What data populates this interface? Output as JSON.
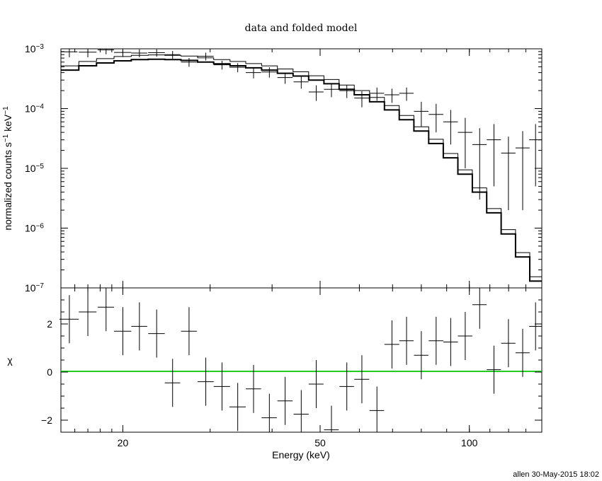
{
  "chart_data": [
    {
      "type": "line",
      "title": "data and folded model",
      "ylabel": "normalized counts s^-1 keV^-1",
      "xscale": "log",
      "yscale": "log",
      "xlim": [
        15,
        140
      ],
      "ylim": [
        1e-07,
        0.001
      ],
      "yticks": [
        {
          "label": "10",
          "exp": "−3",
          "value": 0.001
        },
        {
          "label": "10",
          "exp": "−4",
          "value": 0.0001
        },
        {
          "label": "10",
          "exp": "−5",
          "value": 1e-05
        },
        {
          "label": "10",
          "exp": "−6",
          "value": 1e-06
        },
        {
          "label": "10",
          "exp": "−7",
          "value": 1e-07
        }
      ],
      "model_color": "#000000",
      "data_color": "#000000",
      "series": [
        {
          "role": "model",
          "bins": [
            [
              15.0,
              16.3,
              0.00044
            ],
            [
              16.3,
              17.7,
              0.00052
            ],
            [
              17.7,
              19.2,
              0.00058
            ],
            [
              19.2,
              20.8,
              0.00063
            ],
            [
              20.8,
              22.5,
              0.00066
            ],
            [
              22.5,
              24.3,
              0.00067
            ],
            [
              24.3,
              26.2,
              0.00066
            ],
            [
              26.2,
              28.3,
              0.00064
            ],
            [
              28.3,
              30.5,
              0.0006
            ],
            [
              30.5,
              32.9,
              0.00056
            ],
            [
              32.9,
              35.4,
              0.00052
            ],
            [
              35.4,
              38.1,
              0.00048
            ],
            [
              38.1,
              41.0,
              0.00044
            ],
            [
              41.0,
              44.1,
              0.00039
            ],
            [
              44.1,
              47.4,
              0.00035
            ],
            [
              47.4,
              50.9,
              0.0003
            ],
            [
              50.9,
              54.6,
              0.00026
            ],
            [
              54.6,
              58.6,
              0.00021
            ],
            [
              58.6,
              62.9,
              0.00017
            ],
            [
              62.9,
              67.4,
              0.00013
            ],
            [
              67.4,
              72.2,
              9.5e-05
            ],
            [
              72.2,
              77.3,
              6.5e-05
            ],
            [
              77.3,
              82.8,
              4.2e-05
            ],
            [
              82.8,
              88.6,
              2.6e-05
            ],
            [
              88.6,
              94.8,
              1.5e-05
            ],
            [
              94.8,
              101.4,
              8e-06
            ],
            [
              101.4,
              108.4,
              4e-06
            ],
            [
              108.4,
              115.9,
              1.8e-06
            ],
            [
              115.9,
              123.9,
              8e-07
            ],
            [
              123.9,
              132.4,
              3.3e-07
            ],
            [
              132.4,
              140.0,
              1.3e-07
            ]
          ]
        },
        {
          "role": "data",
          "points": [
            [
              15.6,
              0.6,
              0.00089,
              0.00017
            ],
            [
              17.0,
              0.7,
              0.00088,
              0.00016
            ],
            [
              18.5,
              0.7,
              0.00096,
              0.00015
            ],
            [
              20.0,
              0.8,
              0.00087,
              0.00014
            ],
            [
              21.6,
              0.8,
              0.00085,
              0.00013
            ],
            [
              23.4,
              0.9,
              0.00086,
              0.00012
            ],
            [
              25.2,
              0.9,
              0.0008,
              0.00012
            ],
            [
              27.2,
              1.0,
              0.0006,
              0.0001
            ],
            [
              29.4,
              1.1,
              0.00075,
              0.00011
            ],
            [
              31.7,
              1.2,
              0.00054,
              9e-05
            ],
            [
              34.1,
              1.3,
              0.00049,
              8.5e-05
            ],
            [
              36.7,
              1.3,
              0.0004,
              8e-05
            ],
            [
              39.5,
              1.4,
              0.00041,
              8e-05
            ],
            [
              42.5,
              1.5,
              0.00033,
              7e-05
            ],
            [
              45.8,
              1.6,
              0.00028,
              6.5e-05
            ],
            [
              49.1,
              1.7,
              0.00019,
              5.5e-05
            ],
            [
              52.7,
              1.8,
              0.00021,
              5.5e-05
            ],
            [
              56.6,
              1.9,
              0.0002,
              5e-05
            ],
            [
              60.7,
              2.1,
              0.00015,
              4.5e-05
            ],
            [
              65.1,
              2.2,
              0.00018,
              4.5e-05
            ],
            [
              69.8,
              2.4,
              0.00017,
              4.5e-05
            ],
            [
              74.7,
              2.5,
              0.00018,
              4.5e-05
            ],
            [
              80.0,
              2.7,
              9e-05,
              4e-05
            ],
            [
              85.7,
              2.9,
              8e-05,
              4e-05
            ],
            [
              91.7,
              3.1,
              6e-05,
              3.5e-05
            ],
            [
              98.1,
              3.3,
              4e-05,
              3e-05
            ],
            [
              104.9,
              3.5,
              2.5e-05,
              2.2e-05
            ],
            [
              112.1,
              3.7,
              3e-05,
              2.5e-05
            ],
            [
              119.9,
              4.0,
              1.8e-05,
              1.6e-05
            ],
            [
              128.1,
              4.2,
              2.2e-05,
              2e-05
            ],
            [
              136.0,
              4.0,
              3e-05,
              2.5e-05
            ]
          ]
        }
      ]
    },
    {
      "type": "scatter",
      "xlabel": "Energy (keV)",
      "ylabel": "χ",
      "xscale": "log",
      "xlim": [
        15,
        140
      ],
      "ylim": [
        -2.5,
        3.5
      ],
      "xticks": [
        {
          "label": "20",
          "value": 20
        },
        {
          "label": "50",
          "value": 50
        },
        {
          "label": "100",
          "value": 100
        }
      ],
      "yticks": [
        {
          "label": "2",
          "value": 2
        },
        {
          "label": "0",
          "value": 0
        },
        {
          "label": "−2",
          "value": -2
        }
      ],
      "reference_line": {
        "y": 0,
        "color": "#22cc22"
      },
      "series": [
        {
          "role": "residuals",
          "points": [
            [
              15.6,
              0.7,
              2.2,
              1.0
            ],
            [
              17.0,
              0.7,
              2.5,
              1.0
            ],
            [
              18.5,
              0.7,
              2.7,
              1.0
            ],
            [
              20.0,
              0.8,
              1.7,
              1.0
            ],
            [
              21.6,
              0.8,
              1.9,
              1.0
            ],
            [
              23.4,
              0.9,
              1.6,
              1.0
            ],
            [
              25.2,
              0.9,
              -0.45,
              1.0
            ],
            [
              27.2,
              1.0,
              1.7,
              1.0
            ],
            [
              29.4,
              1.1,
              -0.4,
              1.0
            ],
            [
              31.7,
              1.2,
              -0.6,
              1.0
            ],
            [
              34.1,
              1.3,
              -1.45,
              1.0
            ],
            [
              36.7,
              1.3,
              -0.7,
              1.0
            ],
            [
              39.5,
              1.4,
              -1.9,
              1.0
            ],
            [
              42.5,
              1.5,
              -1.2,
              1.0
            ],
            [
              45.8,
              1.6,
              -1.75,
              1.0
            ],
            [
              49.1,
              1.7,
              -0.5,
              1.0
            ],
            [
              52.7,
              1.8,
              -2.4,
              1.0
            ],
            [
              56.6,
              1.9,
              -0.6,
              1.0
            ],
            [
              60.7,
              2.1,
              -0.3,
              1.0
            ],
            [
              65.1,
              2.2,
              -1.6,
              1.0
            ],
            [
              69.8,
              2.4,
              1.15,
              1.0
            ],
            [
              74.7,
              2.5,
              1.3,
              1.0
            ],
            [
              80.0,
              2.7,
              0.7,
              1.0
            ],
            [
              85.7,
              2.9,
              1.3,
              1.0
            ],
            [
              91.7,
              3.1,
              1.25,
              1.0
            ],
            [
              98.1,
              3.3,
              1.5,
              1.0
            ],
            [
              104.9,
              3.5,
              2.8,
              1.0
            ],
            [
              112.1,
              3.7,
              0.1,
              1.0
            ],
            [
              119.9,
              4.0,
              1.2,
              1.0
            ],
            [
              128.1,
              4.2,
              0.8,
              1.0
            ],
            [
              136.0,
              4.0,
              1.9,
              1.0
            ]
          ]
        }
      ]
    }
  ],
  "footer": {
    "stamp": "allen 30-May-2015 18:02"
  }
}
